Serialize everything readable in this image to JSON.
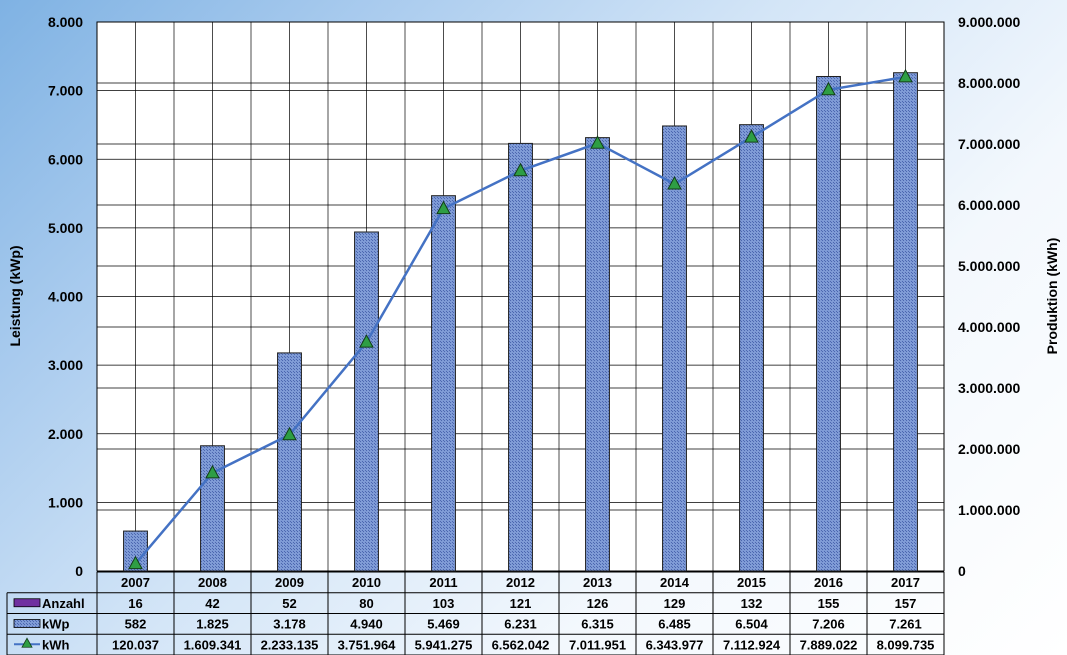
{
  "chart_data": {
    "type": "bar",
    "title": "",
    "categories": [
      "2007",
      "2008",
      "2009",
      "2010",
      "2011",
      "2012",
      "2013",
      "2014",
      "2015",
      "2016",
      "2017"
    ],
    "series": [
      {
        "name": "Anzahl",
        "values": [
          16,
          42,
          52,
          80,
          103,
          121,
          126,
          129,
          132,
          155,
          157
        ],
        "labels": [
          "16",
          "42",
          "52",
          "80",
          "103",
          "121",
          "126",
          "129",
          "132",
          "155",
          "157"
        ],
        "chart_type": "table_only",
        "color": "#7030a0"
      },
      {
        "name": "kWp",
        "values": [
          582,
          1825,
          3178,
          4940,
          5469,
          6231,
          6315,
          6485,
          6504,
          7206,
          7261
        ],
        "labels": [
          "582",
          "1.825",
          "3.178",
          "4.940",
          "5.469",
          "6.231",
          "6.315",
          "6.485",
          "6.504",
          "7.206",
          "7.261"
        ],
        "chart_type": "bar",
        "axis": "left",
        "color": "#6f8fcf"
      },
      {
        "name": "kWh",
        "values": [
          120037,
          1609341,
          2233135,
          3751964,
          5941275,
          6562042,
          7011951,
          6343977,
          7112924,
          7889022,
          8099735
        ],
        "labels": [
          "120.037",
          "1.609.341",
          "2.233.135",
          "3.751.964",
          "5.941.275",
          "6.562.042",
          "7.011.951",
          "6.343.977",
          "7.112.924",
          "7.889.022",
          "8.099.735"
        ],
        "chart_type": "line",
        "axis": "right",
        "color": "#4472c4",
        "marker": "triangle",
        "marker_color": "#2e9e44"
      }
    ],
    "ylabel": "Leistung (kWp)",
    "ylabel_right": "Produktion (kWh)",
    "ylim": [
      0,
      8000
    ],
    "ylim_right": [
      0,
      9000000
    ],
    "yticks": [
      "0",
      "1.000",
      "2.000",
      "3.000",
      "4.000",
      "5.000",
      "6.000",
      "7.000",
      "8.000"
    ],
    "yticks_right": [
      "0",
      "1.000.000",
      "2.000.000",
      "3.000.000",
      "4.000.000",
      "5.000.000",
      "6.000.000",
      "7.000.000",
      "8.000.000",
      "9.000.000"
    ],
    "grid": true,
    "legend": "data-table"
  }
}
